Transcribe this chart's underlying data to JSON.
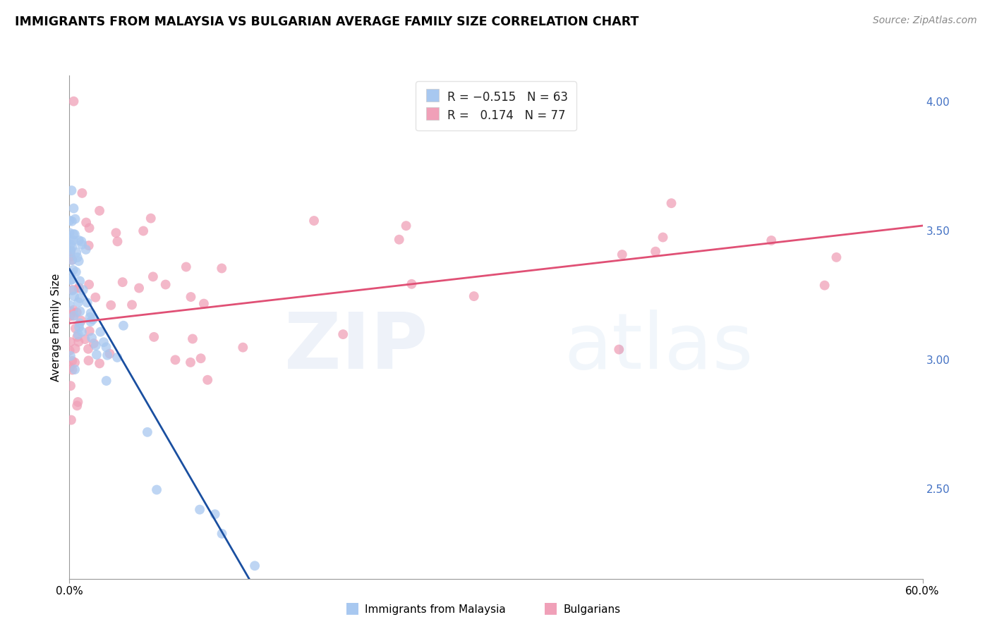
{
  "title": "IMMIGRANTS FROM MALAYSIA VS BULGARIAN AVERAGE FAMILY SIZE CORRELATION CHART",
  "source": "Source: ZipAtlas.com",
  "ylabel": "Average Family Size",
  "xlim": [
    0.0,
    60.0
  ],
  "ylim": [
    2.15,
    4.1
  ],
  "right_yticks": [
    2.5,
    3.0,
    3.5,
    4.0
  ],
  "blue_color": "#a8c8f0",
  "pink_color": "#f0a0b8",
  "trend_blue": "#1a4fa0",
  "trend_pink": "#e05075",
  "blue_scatter_seed": 12,
  "pink_scatter_seed": 99,
  "blue_intercept": 3.35,
  "blue_slope": -0.095,
  "pink_intercept": 3.14,
  "pink_slope": 0.0063,
  "marker_size": 100
}
